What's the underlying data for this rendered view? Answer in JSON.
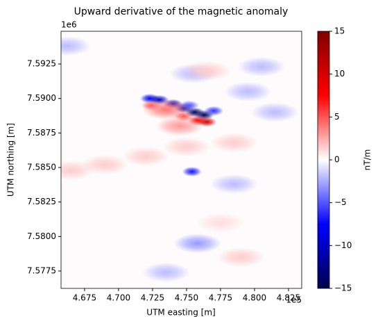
{
  "chart_data": {
    "type": "heatmap",
    "title": "Upward derivative of the magnetic anomaly",
    "xlabel": "UTM easting [m]",
    "ylabel": "UTM northing [m]",
    "x_offset_label": "1e5",
    "y_offset_label": "1e6",
    "colorbar_label": "nT/m",
    "colorscale": [
      "#00004c",
      "#0000ff",
      "#ffffff",
      "#ff0000",
      "#7f0000"
    ],
    "xlim": [
      465770,
      483470
    ],
    "ylim": [
      7576240,
      7594870
    ],
    "clim": [
      -15,
      15
    ],
    "xticks": [
      {
        "value": 467500,
        "label": "4.675"
      },
      {
        "value": 470000,
        "label": "4.700"
      },
      {
        "value": 472500,
        "label": "4.725"
      },
      {
        "value": 475000,
        "label": "4.750"
      },
      {
        "value": 477500,
        "label": "4.775"
      },
      {
        "value": 480000,
        "label": "4.800"
      },
      {
        "value": 482500,
        "label": "4.825"
      }
    ],
    "yticks": [
      {
        "value": 7577500,
        "label": "7.5775"
      },
      {
        "value": 7580000,
        "label": "7.5800"
      },
      {
        "value": 7582500,
        "label": "7.5825"
      },
      {
        "value": 7585000,
        "label": "7.5850"
      },
      {
        "value": 7587500,
        "label": "7.5875"
      },
      {
        "value": 7590000,
        "label": "7.5900"
      },
      {
        "value": 7592500,
        "label": "7.5925"
      }
    ],
    "cticks": [
      {
        "value": -15,
        "label": "−15"
      },
      {
        "value": -10,
        "label": "−10"
      },
      {
        "value": -5,
        "label": "−5"
      },
      0,
      5,
      10,
      15
    ],
    "points": {
      "x": [
        472300,
        473000,
        474000,
        474800,
        475600,
        476300,
        477000,
        475200,
        472400,
        473500,
        474800,
        475800,
        476500,
        474500,
        475400,
        466500,
        469000,
        472000,
        475000,
        478500,
        466200,
        475500,
        479500,
        481500,
        473500,
        475800,
        478500,
        480500,
        476500,
        477500,
        479000
      ],
      "y": [
        7590000,
        7589900,
        7589600,
        7589300,
        7589000,
        7588800,
        7589100,
        7589500,
        7589500,
        7589200,
        7588700,
        7588400,
        7588300,
        7588000,
        7584700,
        7584800,
        7585200,
        7585800,
        7586500,
        7586800,
        7593800,
        7591800,
        7590500,
        7589000,
        7577400,
        7579500,
        7583800,
        7592300,
        7592000,
        7581000,
        7578500
      ],
      "values": [
        -8,
        -10,
        -11,
        -12,
        -14,
        -14,
        -6,
        -5,
        5,
        4,
        5,
        8,
        10,
        3,
        -7,
        1.5,
        1.5,
        1.5,
        1.5,
        1.5,
        -2,
        -2,
        -2,
        -2,
        -2,
        -3,
        -2,
        -2,
        1.5,
        1,
        1.5
      ]
    }
  }
}
